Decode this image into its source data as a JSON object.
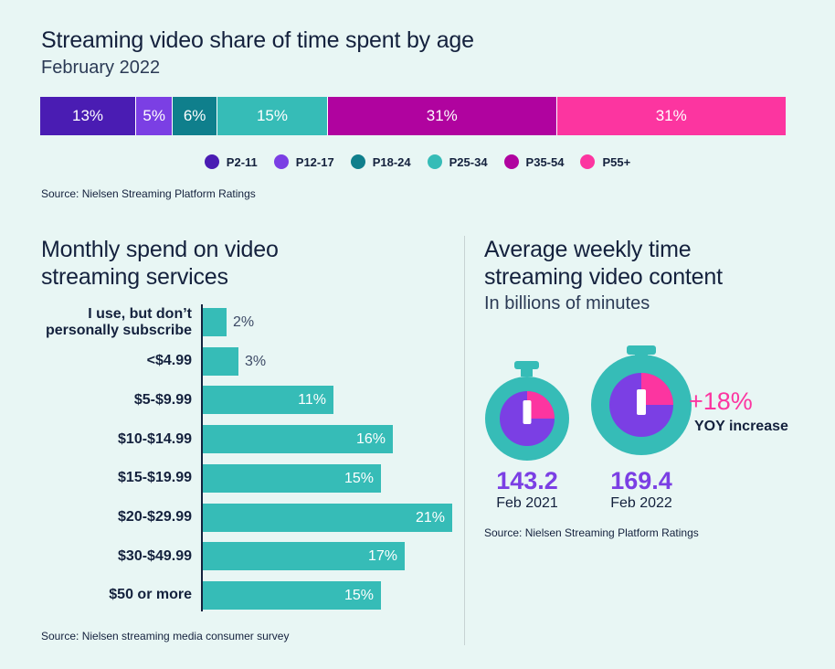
{
  "header": {
    "title": "Streaming video share of time spent by age",
    "subtitle": "February 2022",
    "source": "Source: Nielsen Streaming Platform Ratings"
  },
  "spend": {
    "title_line1": "Monthly spend on video",
    "title_line2": "streaming services",
    "source": "Source: Nielsen streaming media consumer survey"
  },
  "weekly": {
    "title_line1": "Average weekly time",
    "title_line2": "streaming video content",
    "subtitle": "In billions of minutes",
    "change": "+18%",
    "change_label": "YOY increase",
    "source": "Source: Nielsen Streaming Platform Ratings"
  },
  "chart_data": [
    {
      "type": "bar",
      "orientation": "horizontal-stacked",
      "title": "Streaming video share of time spent by age",
      "subtitle": "February 2022",
      "series": [
        {
          "name": "P2-11",
          "value": 13,
          "label": "13%",
          "color": "#4a1cb3"
        },
        {
          "name": "P12-17",
          "value": 5,
          "label": "5%",
          "color": "#7b3fe4"
        },
        {
          "name": "P18-24",
          "value": 6,
          "label": "6%",
          "color": "#0f7f8c"
        },
        {
          "name": "P25-34",
          "value": 15,
          "label": "15%",
          "color": "#36bcb7"
        },
        {
          "name": "P35-54",
          "value": 31,
          "label": "31%",
          "color": "#b0039f"
        },
        {
          "name": "P55+",
          "value": 31,
          "label": "31%",
          "color": "#fc35a0"
        }
      ],
      "legend": "bottom"
    },
    {
      "type": "bar",
      "orientation": "horizontal",
      "title": "Monthly spend on video streaming services",
      "color": "#36bcb7",
      "categories": [
        [
          "I use, but don’t",
          "personally subscribe"
        ],
        [
          "<$4.99"
        ],
        [
          "$5-$9.99"
        ],
        [
          "$10-$14.99"
        ],
        [
          "$15-$19.99"
        ],
        [
          "$20-$29.99"
        ],
        [
          "$30-$49.99"
        ],
        [
          "$50 or more"
        ]
      ],
      "values": [
        2,
        3,
        11,
        16,
        15,
        21,
        17,
        15
      ],
      "value_labels": [
        "2%",
        "3%",
        "11%",
        "16%",
        "15%",
        "21%",
        "17%",
        "15%"
      ]
    },
    {
      "type": "pie",
      "title": "Average weekly time streaming video content",
      "subtitle": "In billions of minutes",
      "items": [
        {
          "value": 143.2,
          "label": "143.2",
          "date": "Feb 2021"
        },
        {
          "value": 169.4,
          "label": "169.4",
          "date": "Feb 2022"
        }
      ],
      "colors": {
        "ring": "#36bcb7",
        "face": "#7b3fe4",
        "wedge": "#fc35a0",
        "hand": "#ffffff"
      }
    }
  ]
}
